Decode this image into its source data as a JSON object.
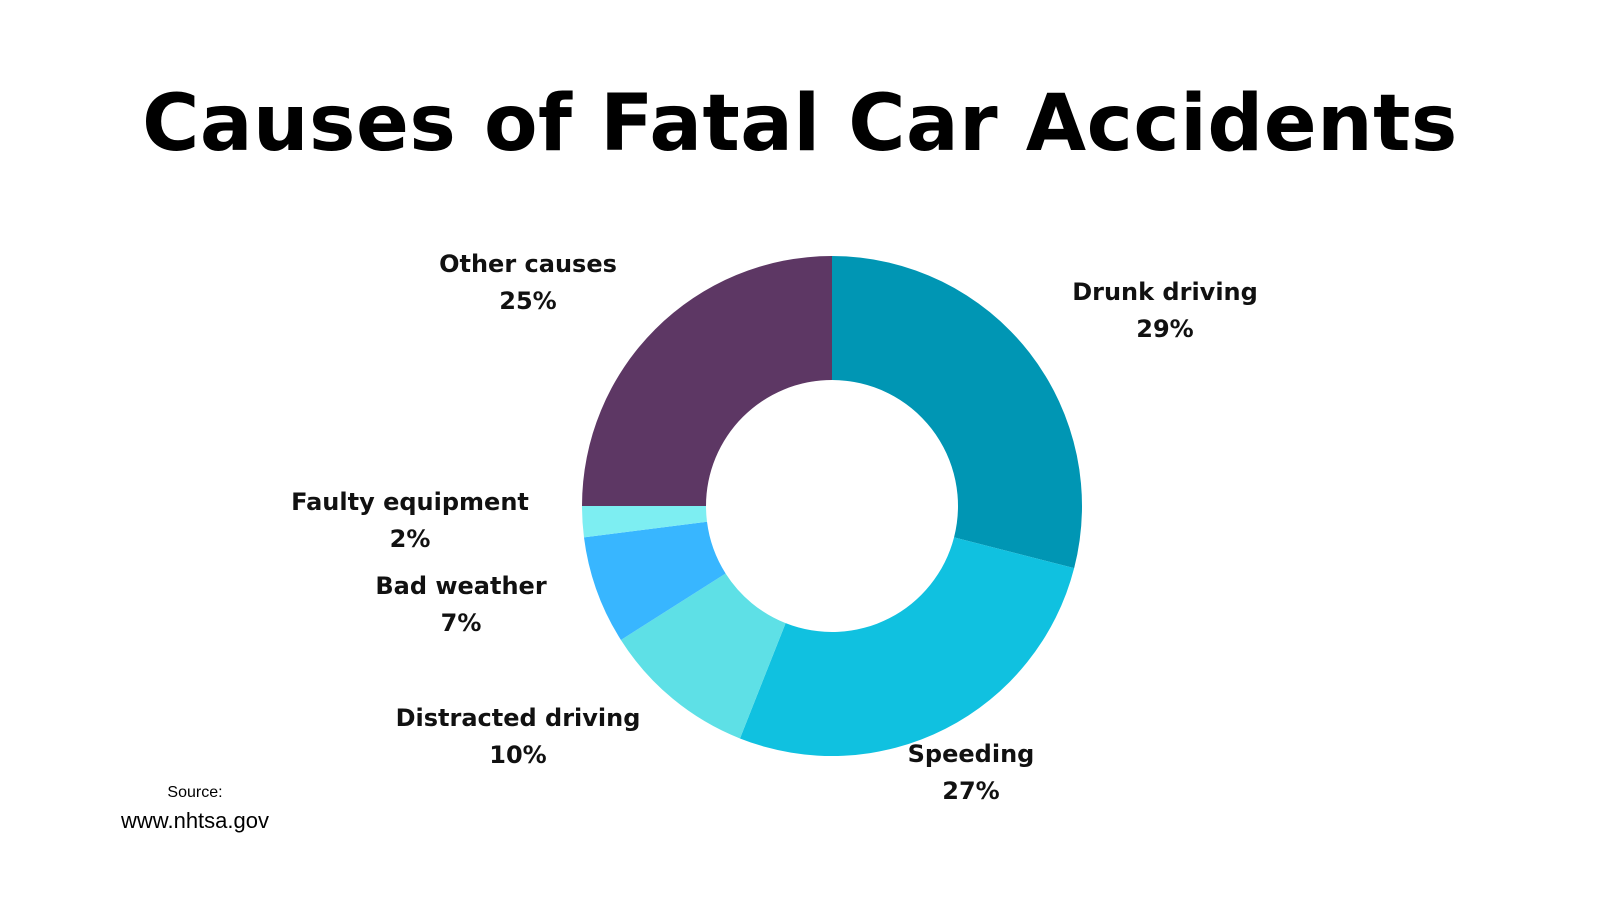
{
  "title": "Causes of Fatal Car Accidents",
  "source": {
    "label": "Source:",
    "url": "www.nhtsa.gov"
  },
  "chart_data": {
    "type": "pie",
    "donut": true,
    "title": "Causes of Fatal Car Accidents",
    "unit": "%",
    "slices": [
      {
        "label": "Drunk driving",
        "value": 29,
        "display": "29%",
        "color": "#0096B4"
      },
      {
        "label": "Speeding",
        "value": 27,
        "display": "27%",
        "color": "#10C1E0"
      },
      {
        "label": "Distracted driving",
        "value": 10,
        "display": "10%",
        "color": "#5EE0E6"
      },
      {
        "label": "Bad weather",
        "value": 7,
        "display": "7%",
        "color": "#38B6FF"
      },
      {
        "label": "Faulty equipment",
        "value": 2,
        "display": "2%",
        "color": "#7DEEF2"
      },
      {
        "label": "Other causes",
        "value": 25,
        "display": "25%",
        "color": "#5D3764"
      }
    ]
  }
}
